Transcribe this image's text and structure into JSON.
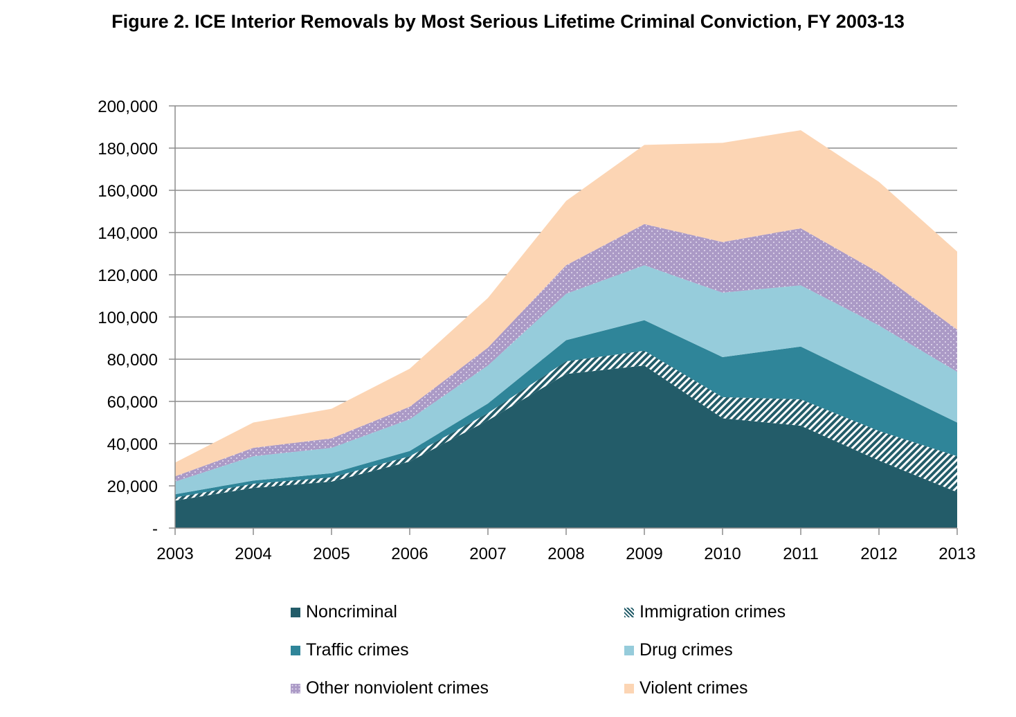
{
  "title": "Figure 2. ICE Interior Removals by Most Serious Lifetime Criminal Conviction, FY 2003-13",
  "chart_data": {
    "type": "area",
    "stacked": true,
    "title": "Figure 2. ICE Interior Removals by Most Serious Lifetime Criminal Conviction, FY 2003-13",
    "xlabel": "",
    "ylabel": "",
    "categories": [
      "2003",
      "2004",
      "2005",
      "2006",
      "2007",
      "2008",
      "2009",
      "2010",
      "2011",
      "2012",
      "2013"
    ],
    "ylim": [
      0,
      200000
    ],
    "yticks": [
      0,
      20000,
      40000,
      60000,
      80000,
      100000,
      120000,
      140000,
      160000,
      180000,
      200000
    ],
    "ytick_labels": [
      "-",
      "20,000",
      "40,000",
      "60,000",
      "80,000",
      "100,000",
      "120,000",
      "140,000",
      "160,000",
      "180,000",
      "200,000"
    ],
    "grid": true,
    "legend_position": "bottom",
    "series": [
      {
        "name": "Noncriminal",
        "color": "#235c69",
        "pattern": "solid",
        "values": [
          13000,
          19000,
          22000,
          31500,
          51000,
          73000,
          77000,
          52000,
          48500,
          32000,
          17000
        ]
      },
      {
        "name": "Immigration crimes",
        "color": "#235c69",
        "pattern": "diagonal-hatch",
        "values": [
          1500,
          2000,
          2000,
          2500,
          3500,
          6000,
          7000,
          10000,
          12500,
          14000,
          17000
        ]
      },
      {
        "name": "Traffic crimes",
        "color": "#2f8599",
        "pattern": "solid",
        "values": [
          1500,
          1500,
          2000,
          2500,
          4500,
          10000,
          14500,
          19000,
          25000,
          22000,
          16000
        ]
      },
      {
        "name": "Drug crimes",
        "color": "#96ccdb",
        "pattern": "solid",
        "values": [
          6000,
          11500,
          12000,
          15000,
          18000,
          22000,
          26000,
          30500,
          29000,
          28000,
          24000
        ]
      },
      {
        "name": "Other nonviolent crimes",
        "color": "#ab9ac6",
        "pattern": "dots",
        "values": [
          2500,
          4000,
          4500,
          6000,
          8500,
          13500,
          19500,
          24000,
          27000,
          25000,
          20000
        ]
      },
      {
        "name": "Violent crimes",
        "color": "#fcd5b4",
        "pattern": "solid",
        "values": [
          6500,
          12000,
          14000,
          18000,
          23500,
          30500,
          37500,
          47000,
          46500,
          43000,
          37000
        ]
      }
    ]
  }
}
